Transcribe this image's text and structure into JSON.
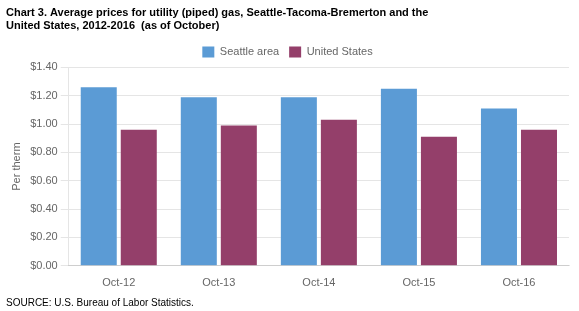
{
  "chart_data": {
    "type": "bar",
    "title": [
      "Chart 3. Average prices for utility (piped) gas, Seattle-Tacoma-Bremerton and the",
      "United States, 2012-2016  (as of October)"
    ],
    "source": "SOURCE: U.S. Bureau of Labor Statistics.",
    "ylabel": "Per therm",
    "categories": [
      "Oct-12",
      "Oct-13",
      "Oct-14",
      "Oct-15",
      "Oct-16"
    ],
    "series": [
      {
        "name": "Seattle area",
        "color": "#5B9BD5",
        "values": [
          1.26,
          1.19,
          1.19,
          1.25,
          1.11
        ]
      },
      {
        "name": "United States",
        "color": "#943F6A",
        "values": [
          0.96,
          0.99,
          1.03,
          0.91,
          0.96
        ]
      }
    ],
    "ylim": [
      0,
      1.4
    ],
    "yticks": [
      {
        "value": 0.0,
        "label": "$0.00"
      },
      {
        "value": 0.2,
        "label": "$0.20"
      },
      {
        "value": 0.4,
        "label": "$0.40"
      },
      {
        "value": 0.6,
        "label": "$0.60"
      },
      {
        "value": 0.8,
        "label": "$0.80"
      },
      {
        "value": 1.0,
        "label": "$1.00"
      },
      {
        "value": 1.2,
        "label": "$1.20"
      },
      {
        "value": 1.4,
        "label": "$1.40"
      }
    ],
    "grid": "y",
    "legend": "top"
  }
}
